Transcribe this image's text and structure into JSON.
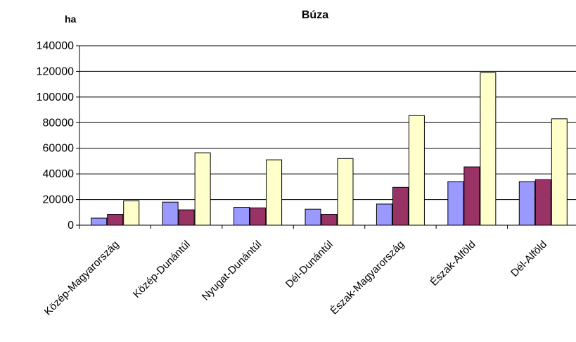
{
  "chart_data": {
    "type": "bar",
    "title": "Búza",
    "unit_label": "ha",
    "xlabel": "",
    "ylabel": "",
    "ylim": [
      0,
      140000
    ],
    "yticks": [
      0,
      20000,
      40000,
      60000,
      80000,
      100000,
      120000,
      140000
    ],
    "grid": true,
    "legend": "none",
    "categories": [
      "Közép-Magyarország",
      "Közép-Dunántúl",
      "Nyugat-Dunántúl",
      "Dél-Dunántúl",
      "Észak-Magyarország",
      "Észak-Alföld",
      "Dél-Alföld"
    ],
    "series": [
      {
        "color": "#9999ff",
        "values": [
          5500,
          18000,
          14000,
          12500,
          16500,
          34000,
          34000
        ]
      },
      {
        "color": "#993366",
        "values": [
          8500,
          12000,
          13500,
          8500,
          29500,
          45500,
          35500
        ]
      },
      {
        "color": "#ffffcc",
        "values": [
          19000,
          56500,
          51000,
          52000,
          85500,
          119000,
          83000
        ]
      }
    ]
  }
}
